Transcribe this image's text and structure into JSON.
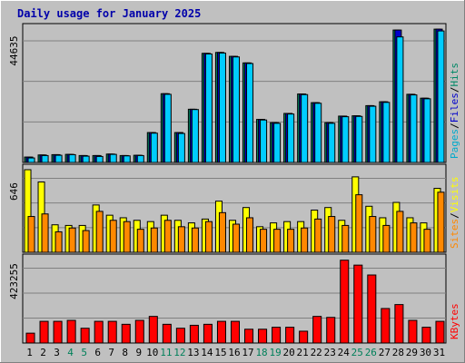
{
  "chart_data": {
    "type": "bar",
    "title": "Daily usage for January 2025",
    "days": [
      "1",
      "2",
      "3",
      "4",
      "5",
      "6",
      "7",
      "8",
      "9",
      "10",
      "11",
      "12",
      "13",
      "14",
      "15",
      "16",
      "17",
      "18",
      "19",
      "20",
      "21",
      "22",
      "23",
      "24",
      "25",
      "26",
      "27",
      "28",
      "29",
      "30",
      "31"
    ],
    "weekend_days": [
      "4",
      "5",
      "11",
      "12",
      "18",
      "19",
      "25",
      "26"
    ],
    "panels": [
      {
        "name": "hits-files-pages",
        "max_label": "44635",
        "ymax": 44635,
        "axis_labels": [
          {
            "text": "Pages",
            "color": "#00aacc"
          },
          {
            "text": "Files",
            "color": "#0000cc"
          },
          {
            "text": "Hits",
            "color": "#008866"
          }
        ],
        "series": [
          {
            "name": "Hits",
            "color": "#008866",
            "values": [
              1800,
              2500,
              2600,
              2700,
              2300,
              2300,
              2800,
              2300,
              2400,
              10000,
              23000,
              10000,
              17800,
              36500,
              36800,
              35500,
              33300,
              14400,
              13300,
              16400,
              22900,
              20000,
              13300,
              15500,
              15600,
              19000,
              20300,
              44300,
              22800,
              21500,
              44600
            ]
          },
          {
            "name": "Files",
            "color": "#0000cc",
            "values": [
              1800,
              2500,
              2600,
              2700,
              2300,
              2300,
              2800,
              2300,
              2400,
              10000,
              23000,
              10000,
              17800,
              36500,
              36800,
              35500,
              33300,
              14400,
              13300,
              16400,
              22900,
              20000,
              13300,
              15500,
              15600,
              19000,
              20300,
              44300,
              22800,
              21500,
              44600
            ]
          },
          {
            "name": "Pages",
            "color": "#00ccff",
            "values": [
              1500,
              2300,
              2400,
              2600,
              2100,
              2000,
              2700,
              2200,
              2300,
              9800,
              22800,
              9700,
              17700,
              36300,
              36600,
              35300,
              33100,
              14200,
              13100,
              16200,
              22700,
              19800,
              13100,
              15300,
              15400,
              18800,
              20100,
              42000,
              22600,
              21300,
              44000
            ]
          }
        ]
      },
      {
        "name": "visits-sites",
        "max_label": "646",
        "ymax": 646,
        "axis_labels": [
          {
            "text": "Sites",
            "color": "#ff8800"
          },
          {
            "text": "Visits",
            "color": "#ffff00"
          }
        ],
        "series": [
          {
            "name": "Visits",
            "color": "#ffff00",
            "values": [
              646,
              550,
              215,
              210,
              210,
              370,
              290,
              270,
              250,
              240,
              290,
              250,
              230,
              260,
              400,
              250,
              350,
              200,
              230,
              240,
              240,
              330,
              350,
              250,
              590,
              360,
              270,
              390,
              270,
              230,
              500
            ]
          },
          {
            "name": "Sites",
            "color": "#ff8800",
            "values": [
              280,
              300,
              160,
              190,
              170,
              320,
              250,
              240,
              180,
              190,
              250,
              200,
              190,
              240,
              310,
              220,
              270,
              180,
              180,
              180,
              190,
              260,
              280,
              210,
              450,
              280,
              210,
              320,
              230,
              180,
              470
            ]
          }
        ]
      },
      {
        "name": "kbytes",
        "max_label": "423255",
        "ymax": 423255,
        "axis_labels": [
          {
            "text": "KBytes",
            "color": "#ff0000"
          }
        ],
        "series": [
          {
            "name": "KBytes",
            "color": "#ff0000",
            "values": [
              50000,
              110000,
              110000,
              115000,
              75000,
              110000,
              110000,
              95000,
              115000,
              135000,
              95000,
              75000,
              90000,
              95000,
              110000,
              110000,
              70000,
              70000,
              80000,
              80000,
              60000,
              135000,
              130000,
              420000,
              395000,
              345000,
              175000,
              195000,
              115000,
              80000,
              110000
            ]
          }
        ]
      }
    ]
  }
}
